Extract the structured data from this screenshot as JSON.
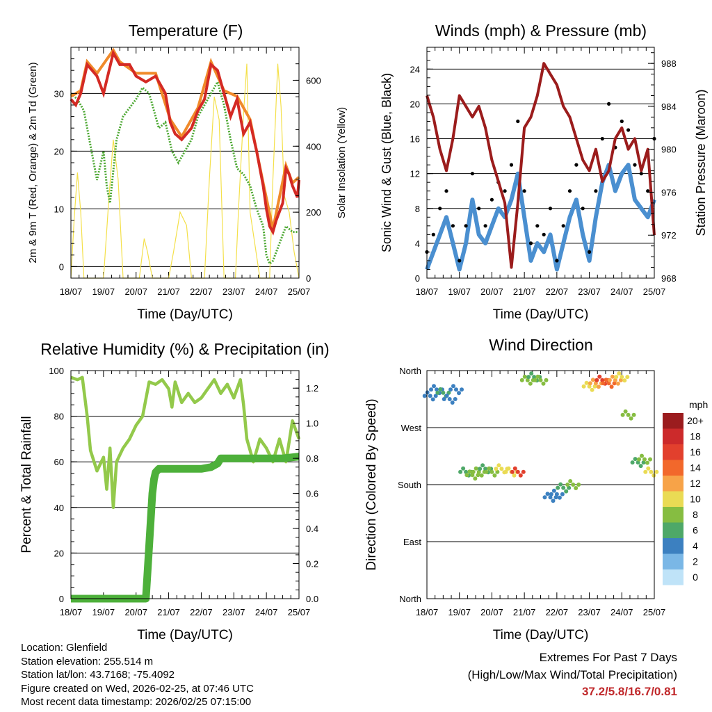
{
  "chart_data": [
    {
      "type": "line",
      "title": "Temperature (F)",
      "xlabel": "Time (Day/UTC)",
      "ylabel": "2m & 9m T (Red, Orange) & 2m Td (Green)",
      "y2label": "Solar Insolation (Yellow)",
      "categories": [
        "18/07",
        "19/07",
        "20/07",
        "21/07",
        "22/07",
        "23/07",
        "24/07",
        "25/07"
      ],
      "ylim": [
        -2,
        38
      ],
      "yticks": [
        0,
        10,
        20,
        30
      ],
      "y2lim": [
        0,
        700
      ],
      "y2ticks": [
        0,
        200,
        400,
        600
      ],
      "series": [
        {
          "name": "2m T",
          "color": "#d42a24",
          "x": [
            0,
            0.15,
            0.3,
            0.5,
            0.8,
            1.0,
            1.3,
            1.5,
            1.8,
            2.0,
            2.3,
            2.6,
            2.9,
            3.05,
            3.2,
            3.4,
            3.7,
            3.9,
            4.1,
            4.3,
            4.5,
            4.7,
            4.9,
            5.1,
            5.3,
            5.5,
            5.7,
            5.9,
            6.0,
            6.1,
            6.2,
            6.3,
            6.5,
            6.6,
            6.7,
            6.8,
            6.95,
            7.0
          ],
          "values": [
            29,
            28,
            30,
            35,
            33,
            30,
            37,
            35,
            35,
            33,
            32,
            33,
            30,
            25,
            23,
            22,
            24,
            27,
            29,
            35,
            34,
            30,
            26,
            29,
            23,
            25,
            20,
            14,
            10,
            7,
            6,
            8,
            11,
            17,
            16,
            14,
            12,
            15
          ]
        },
        {
          "name": "9m T",
          "color": "#f08a2a",
          "x": [
            0,
            0.3,
            0.5,
            0.8,
            1.3,
            1.5,
            2.0,
            2.6,
            3.05,
            3.4,
            3.9,
            4.3,
            4.7,
            5.1,
            5.5,
            5.9,
            6.2,
            6.6,
            6.8,
            7.0
          ],
          "values": [
            29.5,
            30.5,
            35.5,
            33.5,
            37.5,
            35.5,
            33.5,
            33.5,
            25.5,
            22.5,
            27.5,
            35.5,
            30.5,
            29.5,
            25.5,
            14.5,
            6.5,
            17.5,
            14.5,
            15.5
          ]
        },
        {
          "name": "2m Td",
          "color": "#4da833",
          "x": [
            0,
            0.2,
            0.4,
            0.6,
            0.8,
            1.0,
            1.1,
            1.2,
            1.4,
            1.6,
            2.0,
            2.2,
            2.4,
            2.6,
            2.7,
            2.9,
            3.1,
            3.3,
            3.5,
            3.7,
            3.9,
            4.1,
            4.3,
            4.5,
            4.7,
            4.9,
            5.1,
            5.3,
            5.5,
            5.7,
            5.9,
            6.0,
            6.1,
            6.2,
            6.4,
            6.6,
            6.8,
            7.0
          ],
          "values": [
            30,
            29,
            27,
            21,
            15,
            20,
            14,
            11,
            22,
            26,
            29,
            31,
            30,
            26,
            24,
            25,
            20,
            18,
            20,
            22,
            26,
            28,
            30,
            32,
            28,
            22,
            17,
            16,
            14,
            10,
            7,
            2,
            0.5,
            1,
            4,
            7,
            6,
            6
          ]
        },
        {
          "name": "Solar Insolation",
          "color": "#f4e04a",
          "axis": "right",
          "x": [
            0,
            0.1,
            0.2,
            0.3,
            0.4,
            1.0,
            1.15,
            1.3,
            1.45,
            1.6,
            2.1,
            2.25,
            2.35,
            2.5,
            3.0,
            3.15,
            3.35,
            3.55,
            3.7,
            4.1,
            4.25,
            4.4,
            4.55,
            4.7,
            5.05,
            5.15,
            5.3,
            5.4,
            5.5,
            5.8,
            6.1,
            6.2,
            6.35,
            6.45,
            6.55,
            6.7,
            6.85,
            7.0
          ],
          "values": [
            0,
            180,
            320,
            200,
            0,
            0,
            220,
            420,
            300,
            0,
            0,
            120,
            80,
            0,
            0,
            80,
            200,
            160,
            0,
            0,
            300,
            550,
            480,
            0,
            0,
            220,
            500,
            650,
            200,
            0,
            0,
            300,
            650,
            520,
            250,
            200,
            80,
            0
          ]
        }
      ]
    },
    {
      "type": "scatter",
      "title": "Winds (mph) & Pressure (mb)",
      "xlabel": "Time (Day/UTC)",
      "ylabel": "Sonic Wind & Gust (Blue, Black)",
      "y2label": "Station Pressure (Maroon)",
      "categories": [
        "18/07",
        "19/07",
        "20/07",
        "21/07",
        "22/07",
        "23/07",
        "24/07",
        "25/07"
      ],
      "ylim": [
        0,
        26.5
      ],
      "yticks": [
        0,
        4,
        8,
        12,
        16,
        20,
        24
      ],
      "y2lim": [
        968,
        989.5
      ],
      "y2ticks": [
        968,
        972,
        976,
        980,
        984,
        988
      ],
      "series": [
        {
          "name": "Sonic Wind",
          "color": "#4a8fd0",
          "x": [
            0,
            0.2,
            0.4,
            0.6,
            0.8,
            1.0,
            1.2,
            1.4,
            1.6,
            1.8,
            2.0,
            2.2,
            2.4,
            2.6,
            2.8,
            3.0,
            3.2,
            3.4,
            3.6,
            3.8,
            4.0,
            4.2,
            4.4,
            4.6,
            4.8,
            5.0,
            5.2,
            5.4,
            5.6,
            5.8,
            6.0,
            6.2,
            6.4,
            6.6,
            6.8,
            7.0
          ],
          "values": [
            1,
            3,
            5,
            7,
            4,
            1,
            4,
            9,
            5,
            4,
            6,
            8,
            7,
            9,
            12,
            7,
            2,
            4,
            3,
            5,
            1,
            4,
            7,
            9,
            5,
            2,
            7,
            11,
            13,
            10,
            12,
            13,
            9,
            8,
            7,
            9
          ]
        },
        {
          "name": "Gust",
          "color": "#000000",
          "x": [
            0,
            0.2,
            0.4,
            0.6,
            0.8,
            1.0,
            1.2,
            1.4,
            1.6,
            1.8,
            2.0,
            2.2,
            2.4,
            2.6,
            2.8,
            3.0,
            3.2,
            3.4,
            3.6,
            3.8,
            4.0,
            4.2,
            4.4,
            4.6,
            4.8,
            5.0,
            5.2,
            5.4,
            5.6,
            5.8,
            6.0,
            6.2,
            6.4,
            6.6,
            6.8,
            7.0
          ],
          "values": [
            3,
            5,
            8,
            10,
            6,
            2,
            6,
            12,
            8,
            6,
            9,
            11,
            10,
            13,
            18,
            10,
            4,
            6,
            5,
            8,
            2,
            6,
            10,
            13,
            8,
            3,
            10,
            16,
            20,
            15,
            18,
            17,
            13,
            12,
            10,
            16
          ]
        },
        {
          "name": "Station Pressure",
          "color": "#9b1c1c",
          "axis": "right",
          "x": [
            0,
            0.2,
            0.4,
            0.6,
            0.8,
            1.0,
            1.2,
            1.4,
            1.6,
            1.8,
            2.0,
            2.2,
            2.4,
            2.6,
            2.8,
            3.0,
            3.2,
            3.4,
            3.6,
            3.8,
            4.0,
            4.2,
            4.4,
            4.6,
            4.8,
            5.0,
            5.2,
            5.4,
            5.6,
            5.8,
            6.0,
            6.2,
            6.4,
            6.6,
            6.8,
            7.0
          ],
          "values": [
            985,
            983,
            980,
            978,
            981,
            985,
            984,
            983,
            984,
            982,
            979,
            977,
            975,
            969,
            975,
            982,
            983,
            985,
            988,
            987,
            986,
            984,
            983,
            981,
            979,
            978,
            980,
            977,
            978,
            981,
            982,
            980,
            981,
            978,
            980,
            972
          ]
        }
      ]
    },
    {
      "type": "line",
      "title": "Relative Humidity (%) & Precipitation (in)",
      "xlabel": "Time (Day/UTC)",
      "ylabel": "Percent & Total Rainfall",
      "categories": [
        "18/07",
        "19/07",
        "20/07",
        "21/07",
        "22/07",
        "23/07",
        "24/07",
        "25/07"
      ],
      "ylim": [
        0,
        100
      ],
      "yticks": [
        0,
        20,
        40,
        60,
        80,
        100
      ],
      "y2lim": [
        0,
        1.3
      ],
      "y2ticks": [
        0.0,
        0.2,
        0.4,
        0.6,
        0.8,
        1.0,
        1.2
      ],
      "series": [
        {
          "name": "Relative Humidity",
          "color": "#93c94b",
          "x": [
            0,
            0.2,
            0.35,
            0.5,
            0.6,
            0.8,
            1.0,
            1.1,
            1.2,
            1.3,
            1.4,
            1.6,
            1.8,
            2.0,
            2.2,
            2.4,
            2.6,
            2.8,
            3.0,
            3.1,
            3.2,
            3.4,
            3.6,
            3.8,
            4.0,
            4.2,
            4.4,
            4.6,
            4.8,
            5.0,
            5.2,
            5.3,
            5.4,
            5.6,
            5.8,
            6.0,
            6.2,
            6.4,
            6.6,
            6.8,
            7.0
          ],
          "values": [
            97,
            96,
            97,
            80,
            65,
            56,
            62,
            48,
            66,
            40,
            60,
            66,
            70,
            76,
            80,
            95,
            94,
            96,
            92,
            84,
            95,
            86,
            90,
            86,
            88,
            92,
            96,
            90,
            94,
            88,
            96,
            85,
            70,
            60,
            70,
            66,
            60,
            70,
            60,
            78,
            70
          ]
        },
        {
          "name": "Total Rainfall",
          "color": "#4db03a",
          "axis": "right",
          "x": [
            0,
            1.0,
            2.0,
            2.3,
            2.4,
            2.5,
            2.55,
            2.6,
            2.7,
            3.0,
            3.5,
            4.0,
            4.3,
            4.5,
            4.6,
            5.0,
            5.5,
            6.0,
            6.5,
            7.0
          ],
          "values": [
            0,
            0,
            0,
            0,
            0.3,
            0.6,
            0.68,
            0.72,
            0.74,
            0.74,
            0.74,
            0.74,
            0.75,
            0.77,
            0.8,
            0.8,
            0.8,
            0.8,
            0.8,
            0.81
          ]
        }
      ]
    },
    {
      "type": "scatter",
      "title": "Wind Direction",
      "xlabel": "Time (Day/UTC)",
      "ylabel": "Direction (Colored By Speed)",
      "categories": [
        "18/07",
        "19/07",
        "20/07",
        "21/07",
        "22/07",
        "23/07",
        "24/07",
        "25/07"
      ],
      "yticks": [
        "North",
        "East",
        "South",
        "West",
        "North"
      ],
      "colorbar": {
        "title": "mph",
        "labels": [
          "20+",
          "18",
          "16",
          "14",
          "12",
          "10",
          "8",
          "6",
          "4",
          "2",
          "0"
        ],
        "colors": [
          "#9b1c1e",
          "#cc2a2b",
          "#e2402d",
          "#f2682b",
          "#f7a348",
          "#eadb54",
          "#86bd41",
          "#4ea868",
          "#3c80c0",
          "#7ab7e6",
          "#bfe3f8"
        ]
      },
      "series": [
        {
          "name": "Direction (deg)",
          "x": [
            0.1,
            0.3,
            0.5,
            0.7,
            0.9,
            1.2,
            1.4,
            1.6,
            1.8,
            2.0,
            2.3,
            2.6,
            2.8,
            3.1,
            3.3,
            3.5,
            3.8,
            4.0,
            4.2,
            4.5,
            5.0,
            5.2,
            5.4,
            5.6,
            5.8,
            6.0,
            6.2,
            6.5,
            6.7,
            6.9
          ],
          "values": [
            320,
            330,
            325,
            315,
            330,
            200,
            195,
            200,
            205,
            200,
            205,
            200,
            200,
            345,
            350,
            345,
            160,
            165,
            175,
            180,
            335,
            340,
            345,
            340,
            345,
            350,
            290,
            215,
            220,
            200
          ],
          "speeds": [
            4,
            5,
            6,
            4,
            5,
            7,
            9,
            8,
            7,
            8,
            10,
            11,
            16,
            8,
            7,
            9,
            4,
            5,
            6,
            8,
            10,
            13,
            16,
            14,
            12,
            10,
            9,
            7,
            8,
            10
          ]
        }
      ]
    }
  ],
  "footer": {
    "location": "Location: Glenfield",
    "elevation": "Station elevation: 255.514 m",
    "latlon": "Station lat/lon: 43.7168; -75.4092",
    "created": "Figure created on Wed, 2026-02-25, at 07:46 UTC",
    "recent": "Most recent data timestamp: 2026/02/25 07:15:00"
  },
  "extremes": {
    "title": "Extremes For Past 7 Days",
    "subtitle": "(High/Low/Max Wind/Total Precipitation)",
    "values": "37.2/5.8/16.7/0.81"
  }
}
